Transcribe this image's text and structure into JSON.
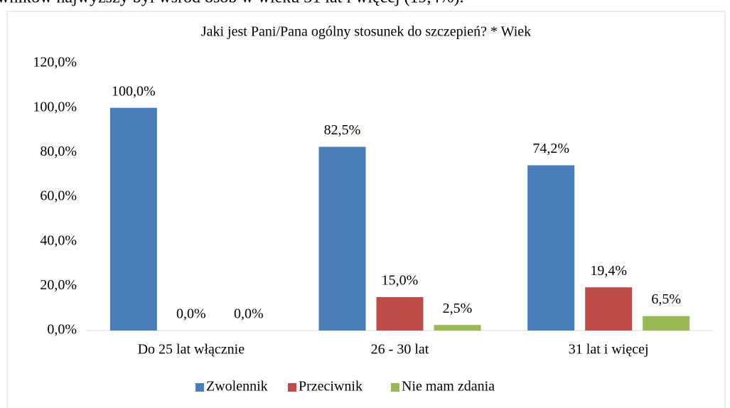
{
  "caption_above": "wników najwyższy był wśród osób w wieku 31 lat i więcej (19,4%).",
  "chart_data": {
    "type": "bar",
    "title": "Jaki jest Pani/Pana ogólny stosunek do szczepień? * Wiek",
    "categories": [
      "Do 25 lat włącznie",
      "26 - 30 lat",
      "31 lat i więcej"
    ],
    "series": [
      {
        "name": "Zwolennik",
        "color": "#4a7ebb",
        "values": [
          100.0,
          82.5,
          74.2
        ],
        "value_labels": [
          "100,0%",
          "82,5%",
          "74,2%"
        ]
      },
      {
        "name": "Przeciwnik",
        "color": "#be4b48",
        "values": [
          0.0,
          15.0,
          19.4
        ],
        "value_labels": [
          "0,0%",
          "15,0%",
          "19,4%"
        ]
      },
      {
        "name": "Nie mam zdania",
        "color": "#98b954",
        "values": [
          0.0,
          2.5,
          6.5
        ],
        "value_labels": [
          "0,0%",
          "2,5%",
          "6,5%"
        ]
      }
    ],
    "ylim": [
      0,
      120
    ],
    "yticks": [
      {
        "value": 0,
        "label": "0,0%"
      },
      {
        "value": 20,
        "label": "20,0%"
      },
      {
        "value": 40,
        "label": "40,0%"
      },
      {
        "value": 60,
        "label": "60,0%"
      },
      {
        "value": 80,
        "label": "80,0%"
      },
      {
        "value": 100,
        "label": "100,0%"
      },
      {
        "value": 120,
        "label": "120,0%"
      }
    ],
    "legend": "bottom"
  }
}
